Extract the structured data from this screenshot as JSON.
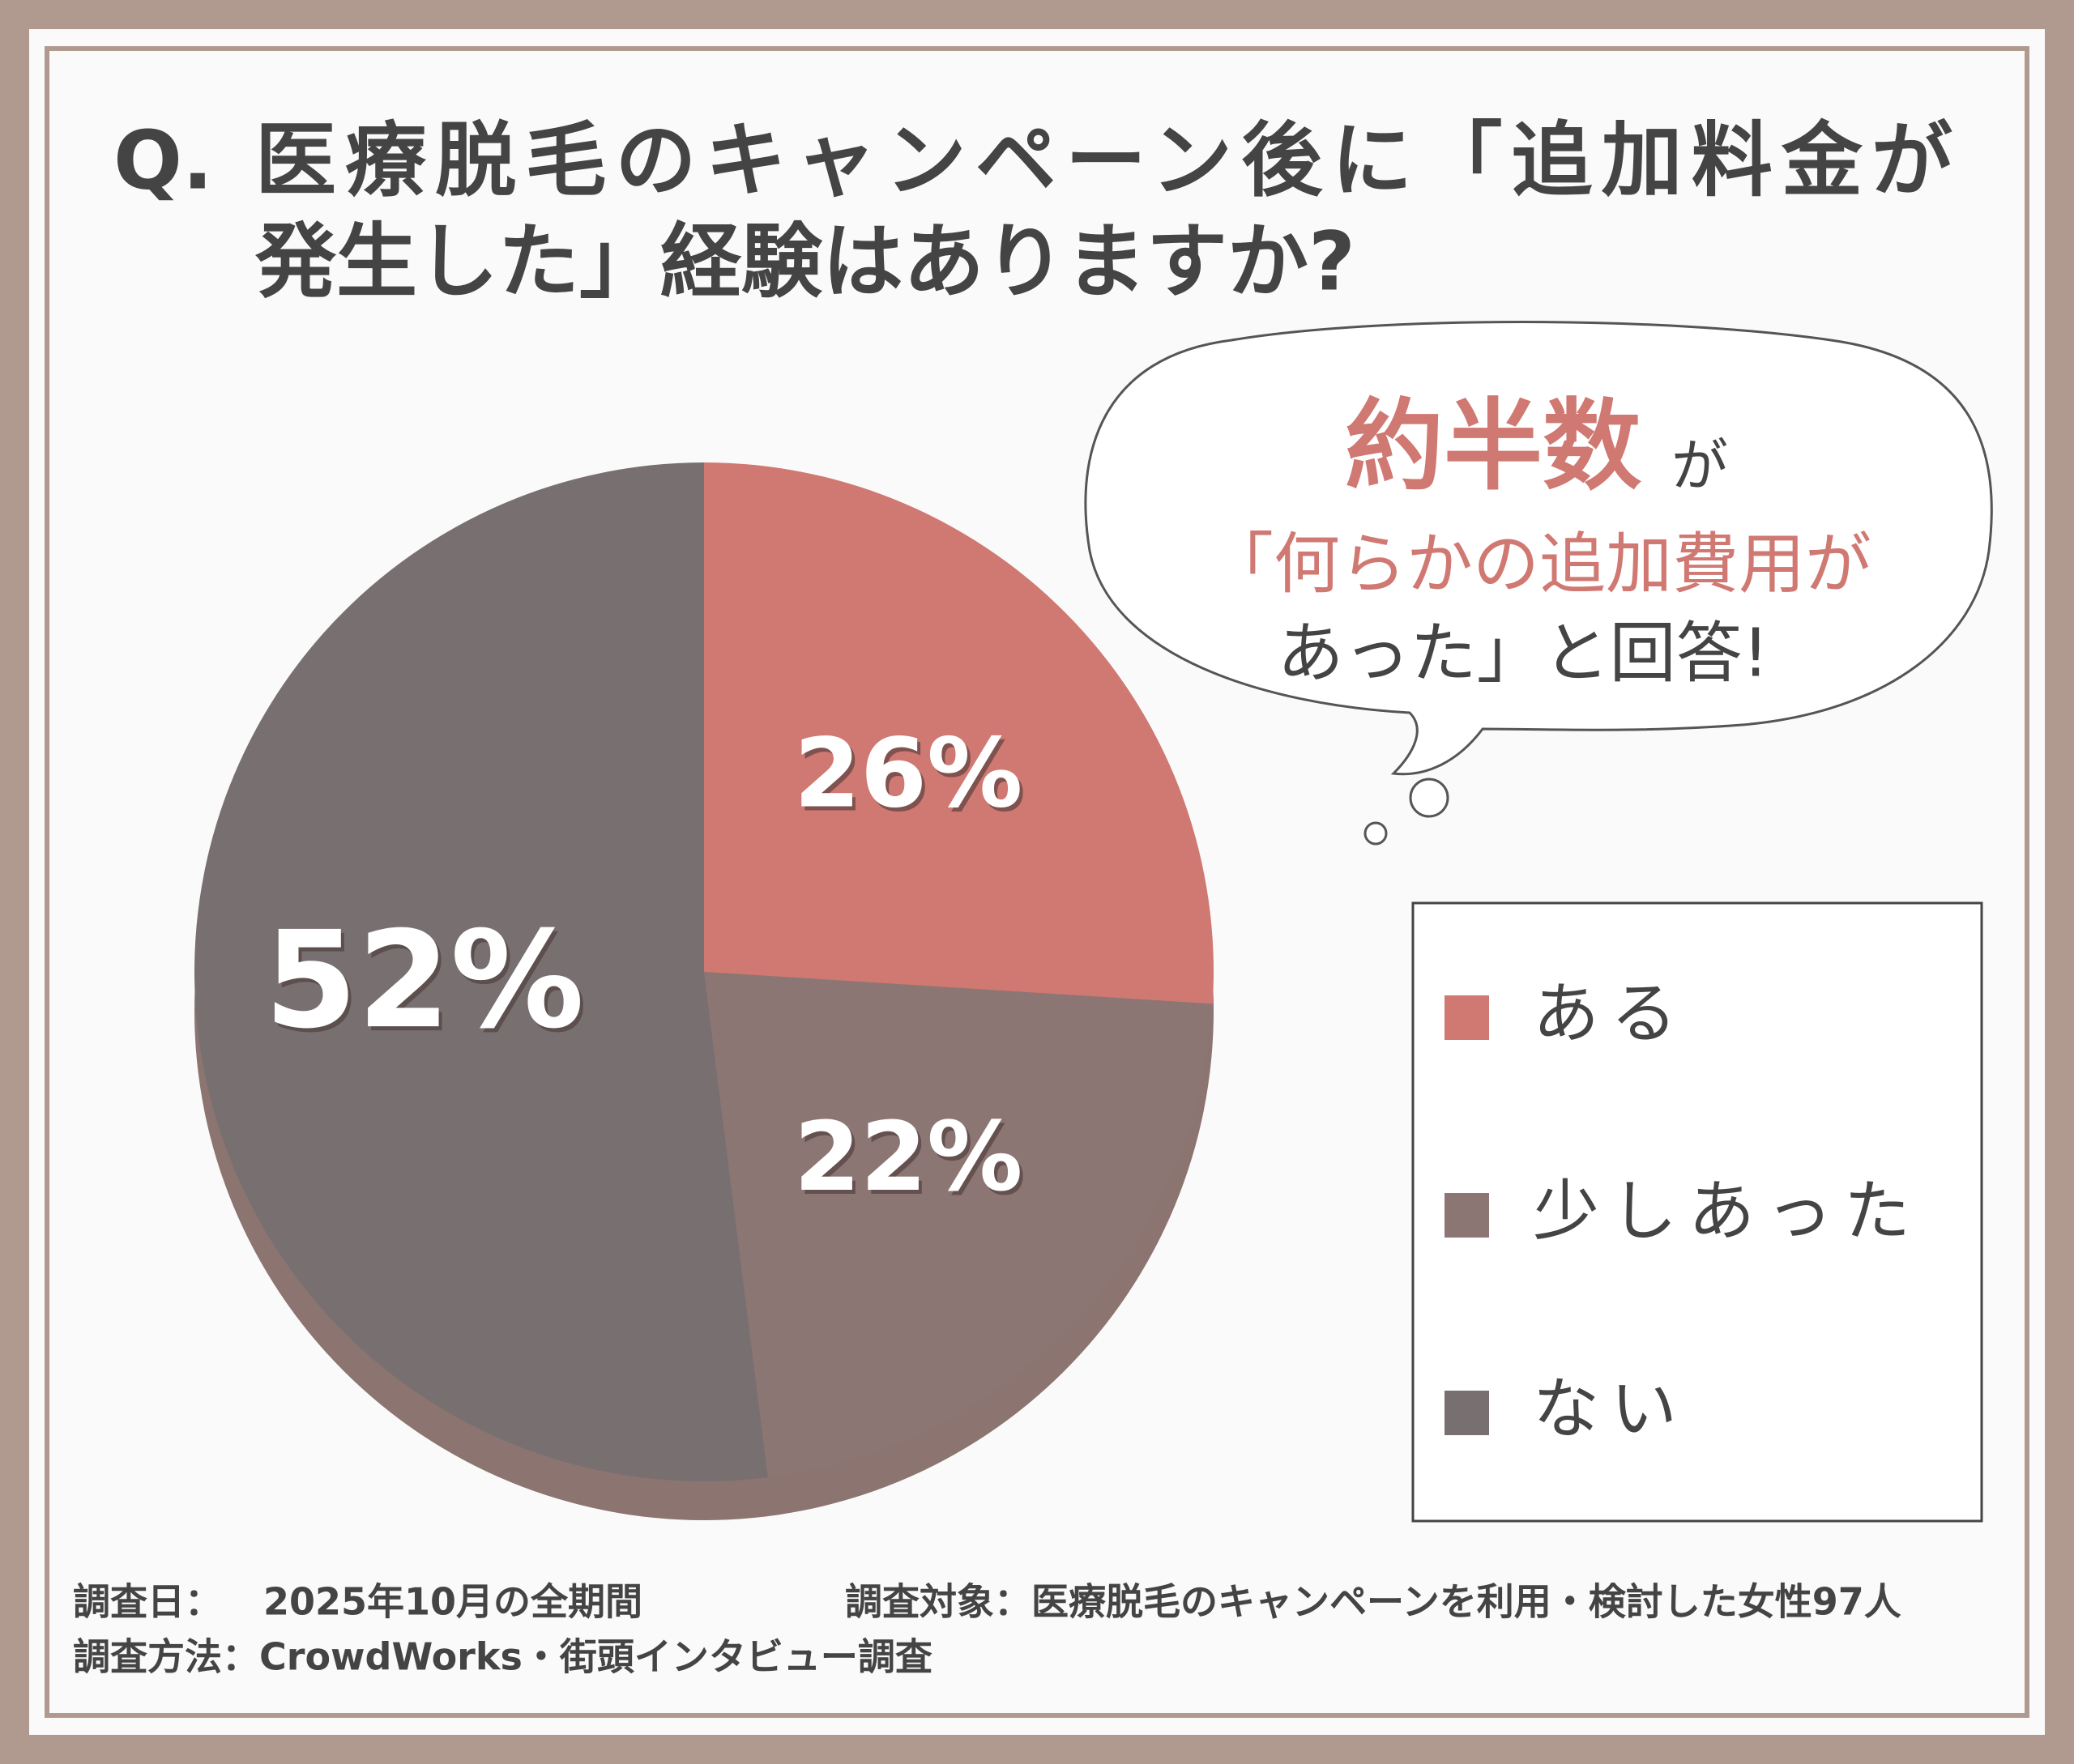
{
  "chart_data": {
    "type": "pie",
    "title_prefix": "Q.",
    "title_lines": [
      "医療脱毛のキャンペーン後に「追加料金が",
      "発生した」経験はありますか?"
    ],
    "categories": [
      "ある",
      "少しあった",
      "ない"
    ],
    "values": [
      26,
      22,
      52
    ],
    "value_labels": [
      "26%",
      "22%",
      "52%"
    ],
    "colors": [
      "#d07872",
      "#8c7674",
      "#787070"
    ],
    "callout": {
      "highlight": "約半数",
      "particle": "が",
      "lines": [
        "「何らかの追加費用が",
        "あった」と回答!"
      ]
    },
    "footer": {
      "date_label": "調査日：",
      "date": "2025年10月の全期間",
      "target": "調査対象：医療脱毛のキャンペーンを利用・検討した女性97人",
      "method": "調査方法：CrowdWorks・街頭インタビュー調査"
    }
  }
}
